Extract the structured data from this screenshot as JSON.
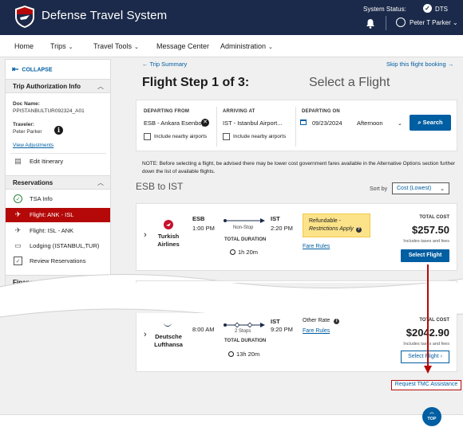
{
  "header": {
    "app_title": "Defense Travel System",
    "status_label": "System Status:",
    "status_value": "DTS",
    "status_icon": "check-circle-icon",
    "user_name": "Peter T Parker",
    "colors": {
      "header_bg": "#1b2a4a",
      "accent": "#005ea2",
      "active": "#b50909"
    }
  },
  "nav": {
    "items": [
      {
        "label": "Home",
        "has_menu": false
      },
      {
        "label": "Trips",
        "has_menu": true
      },
      {
        "label": "Travel Tools",
        "has_menu": true
      },
      {
        "label": "Message Center",
        "has_menu": false
      },
      {
        "label": "Administration",
        "has_menu": true
      }
    ]
  },
  "sidebar": {
    "collapse_label": "COLLAPSE",
    "trip_info": {
      "title": "Trip Authorization Info",
      "doc_name_label": "Doc Name:",
      "doc_name_value": "PPISTANBULTUR092324_A01",
      "traveler_label": "Traveler:",
      "traveler_value": "Peter Parker",
      "view_adjustments": "View Adjustments",
      "edit_itinerary": "Edit Itinerary"
    },
    "reservations": {
      "title": "Reservations",
      "items": [
        {
          "label": "TSA Info",
          "icon": "check-circle-icon",
          "active": false
        },
        {
          "label": "Flight: ANK - ISL",
          "icon": "plane-icon",
          "active": true
        },
        {
          "label": "Flight: ISL - ANK",
          "icon": "plane-icon",
          "active": false
        },
        {
          "label": "Lodging (ISTANBUL,TUR)",
          "icon": "bed-icon",
          "active": false
        },
        {
          "label": "Review Reservations",
          "icon": "checkbox-icon",
          "active": false
        }
      ]
    },
    "finances": {
      "title": "Finances"
    }
  },
  "main": {
    "back_link": "Trip Summary",
    "skip_link": "Skip this flight booking",
    "step_title": "Flight Step 1 of 3:",
    "step_subtitle": "Select a Flight",
    "search": {
      "departing_from_label": "DEPARTING FROM",
      "departing_from_value": "ESB - Ankara Esenboga",
      "arriving_at_label": "ARRIVING AT",
      "arriving_at_value": "IST - Istanbul Airport...",
      "departing_on_label": "DEPARTING ON",
      "date_value": "09/23/2024",
      "time_value": "Afternoon",
      "nearby_label": "Include nearby airports",
      "search_button": "Search"
    },
    "note": "NOTE: Before selecting a flight, be advised there may be lower cost government fares available in the Alternative Options section further down the list of available flights.",
    "route": "ESB to IST",
    "sort_label": "Sort by",
    "sort_value": "Cost (Lowest)",
    "flights": [
      {
        "airline": "Turkish Airlines",
        "dep_code": "ESB",
        "dep_time": "1:00 PM",
        "arr_code": "IST",
        "arr_time": "2:20 PM",
        "stops": "Non-Stop",
        "duration_label": "TOTAL DURATION",
        "duration": "1h 20m",
        "fare_badge_line1": "Refundable -",
        "fare_badge_line2": "Restrictions Apply",
        "fare_rules": "Fare Rules",
        "cost_label": "TOTAL COST",
        "cost": "$257.50",
        "cost_note": "Includes taxes and fees",
        "select_label": "Select Flight"
      },
      {
        "airline": "Deutsche Lufthansa",
        "dep_code": "ESB",
        "dep_time": "8:00 AM",
        "arr_code": "IST",
        "arr_time": "9:20 PM",
        "stops": "2 Stops",
        "duration_label": "TOTAL DURATION",
        "duration": "13h 20m",
        "rate_label": "Other Rate",
        "fare_rules": "Fare Rules",
        "cost_label": "TOTAL COST",
        "cost": "$2042.90",
        "cost_note": "Includes taxes and fees",
        "select_label": "Select Flight"
      }
    ],
    "tmc_assistance": "Request TMC Assistance",
    "top_label": "TOP"
  }
}
